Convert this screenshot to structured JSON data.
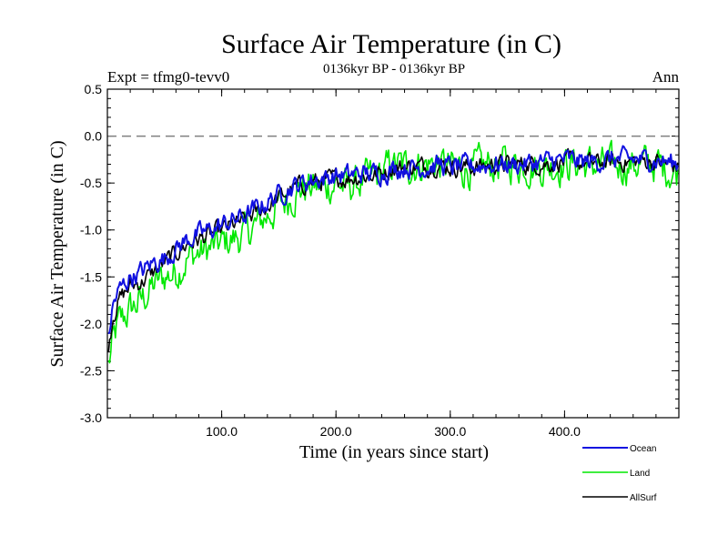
{
  "chart_data": {
    "type": "line",
    "title": "Surface Air Temperature (in C)",
    "subtitle": "0136kyr BP - 0136kyr BP",
    "experiment": "Expt = tfmg0-tevv0",
    "season": "Ann",
    "xlabel": "Time (in years since start)",
    "ylabel": "Surface Air Temperature (in C)",
    "xlim": [
      0,
      500
    ],
    "ylim": [
      -3.0,
      0.5
    ],
    "xticks": [
      100,
      200,
      300,
      400
    ],
    "xtick_labels": [
      "100.0",
      "200.0",
      "300.0",
      "400.0"
    ],
    "yticks": [
      -3.0,
      -2.5,
      -2.0,
      -1.5,
      -1.0,
      -0.5,
      0.0,
      0.5
    ],
    "ytick_labels": [
      "-3.0",
      "-2.5",
      "-2.0",
      "-1.5",
      "-1.0",
      "-0.5",
      "0.0",
      "0.5"
    ],
    "reference_line": {
      "y": 0.0,
      "style": "dashed",
      "color": "#808080"
    },
    "grid": false,
    "legend_position": "bottom-right",
    "x": [
      0,
      5,
      10,
      20,
      30,
      40,
      50,
      60,
      70,
      80,
      90,
      100,
      110,
      120,
      130,
      140,
      150,
      160,
      170,
      180,
      190,
      200,
      210,
      220,
      230,
      240,
      250,
      260,
      270,
      280,
      290,
      300,
      320,
      340,
      360,
      380,
      400,
      420,
      440,
      460,
      480,
      500
    ],
    "series": [
      {
        "name": "Ocean",
        "color": "#1010e0",
        "values": [
          -2.2,
          -1.8,
          -1.65,
          -1.5,
          -1.45,
          -1.35,
          -1.3,
          -1.2,
          -1.1,
          -1.05,
          -1.0,
          -0.95,
          -0.9,
          -0.85,
          -0.78,
          -0.7,
          -0.62,
          -0.55,
          -0.5,
          -0.46,
          -0.45,
          -0.42,
          -0.42,
          -0.4,
          -0.4,
          -0.38,
          -0.35,
          -0.33,
          -0.33,
          -0.33,
          -0.3,
          -0.33,
          -0.32,
          -0.3,
          -0.3,
          -0.28,
          -0.25,
          -0.28,
          -0.25,
          -0.25,
          -0.25,
          -0.3
        ]
      },
      {
        "name": "Land",
        "color": "#00e800",
        "values": [
          -2.5,
          -2.2,
          -2.0,
          -1.85,
          -1.75,
          -1.6,
          -1.5,
          -1.45,
          -1.3,
          -1.25,
          -1.2,
          -1.15,
          -1.1,
          -1.05,
          -0.95,
          -0.85,
          -0.75,
          -0.65,
          -0.55,
          -0.55,
          -0.55,
          -0.5,
          -0.55,
          -0.5,
          -0.45,
          -0.4,
          -0.3,
          -0.33,
          -0.3,
          -0.3,
          -0.3,
          -0.33,
          -0.35,
          -0.3,
          -0.3,
          -0.33,
          -0.3,
          -0.3,
          -0.33,
          -0.3,
          -0.3,
          -0.4
        ]
      },
      {
        "name": "AllSurf",
        "color": "#000000",
        "values": [
          -2.3,
          -1.9,
          -1.75,
          -1.6,
          -1.55,
          -1.45,
          -1.35,
          -1.25,
          -1.15,
          -1.1,
          -1.05,
          -1.0,
          -0.95,
          -0.9,
          -0.82,
          -0.75,
          -0.66,
          -0.58,
          -0.52,
          -0.49,
          -0.48,
          -0.45,
          -0.45,
          -0.43,
          -0.42,
          -0.39,
          -0.34,
          -0.33,
          -0.32,
          -0.32,
          -0.3,
          -0.33,
          -0.33,
          -0.3,
          -0.3,
          -0.3,
          -0.27,
          -0.29,
          -0.28,
          -0.27,
          -0.27,
          -0.33
        ]
      }
    ]
  }
}
